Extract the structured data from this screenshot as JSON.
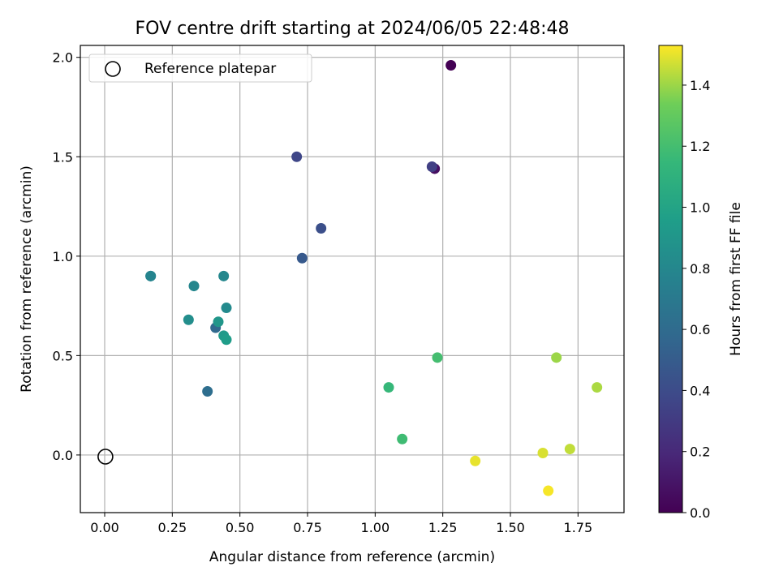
{
  "chart_data": {
    "type": "scatter",
    "title": "FOV centre drift starting at 2024/06/05 22:48:48",
    "xlabel": "Angular distance from reference (arcmin)",
    "ylabel": "Rotation from reference (arcmin)",
    "xlim": [
      -0.09,
      1.92
    ],
    "ylim": [
      -0.29,
      2.06
    ],
    "xticks": [
      0.0,
      0.25,
      0.5,
      0.75,
      1.0,
      1.25,
      1.5,
      1.75
    ],
    "xtick_labels": [
      "0.00",
      "0.25",
      "0.50",
      "0.75",
      "1.00",
      "1.25",
      "1.50",
      "1.75"
    ],
    "yticks": [
      0.0,
      0.5,
      1.0,
      1.5,
      2.0
    ],
    "ytick_labels": [
      "0.0",
      "0.5",
      "1.0",
      "1.5",
      "2.0"
    ],
    "grid": true,
    "legend": {
      "placement": "upper-left",
      "label": "Reference platepar"
    },
    "reference_point": {
      "x": 0.0,
      "y": 0.0
    },
    "colorbar": {
      "label": "Hours from first FF file",
      "min": 0.0,
      "max": 1.53,
      "ticks": [
        0.0,
        0.2,
        0.4,
        0.6,
        0.8,
        1.0,
        1.2,
        1.4
      ],
      "tick_labels": [
        "0.0",
        "0.2",
        "0.4",
        "0.6",
        "0.8",
        "1.0",
        "1.2",
        "1.4"
      ],
      "colormap": "viridis"
    },
    "points": [
      {
        "x": 1.28,
        "y": 1.96,
        "hours": 0.0
      },
      {
        "x": 1.22,
        "y": 1.44,
        "hours": 0.07
      },
      {
        "x": 1.21,
        "y": 1.45,
        "hours": 0.33
      },
      {
        "x": 0.71,
        "y": 1.5,
        "hours": 0.37
      },
      {
        "x": 0.8,
        "y": 1.14,
        "hours": 0.42
      },
      {
        "x": 0.73,
        "y": 0.99,
        "hours": 0.48
      },
      {
        "x": 0.41,
        "y": 0.64,
        "hours": 0.58
      },
      {
        "x": 0.38,
        "y": 0.32,
        "hours": 0.62
      },
      {
        "x": 0.17,
        "y": 0.9,
        "hours": 0.77
      },
      {
        "x": 0.17,
        "y": 0.9,
        "hours": 0.78
      },
      {
        "x": 0.33,
        "y": 0.85,
        "hours": 0.79
      },
      {
        "x": 0.44,
        "y": 0.9,
        "hours": 0.8
      },
      {
        "x": 0.45,
        "y": 0.74,
        "hours": 0.82
      },
      {
        "x": 0.31,
        "y": 0.68,
        "hours": 0.85
      },
      {
        "x": 0.42,
        "y": 0.67,
        "hours": 0.9
      },
      {
        "x": 0.44,
        "y": 0.6,
        "hours": 0.93
      },
      {
        "x": 0.45,
        "y": 0.58,
        "hours": 0.95
      },
      {
        "x": 1.05,
        "y": 0.34,
        "hours": 1.15
      },
      {
        "x": 1.1,
        "y": 0.08,
        "hours": 1.18
      },
      {
        "x": 1.23,
        "y": 0.49,
        "hours": 1.2
      },
      {
        "x": 1.67,
        "y": 0.49,
        "hours": 1.4
      },
      {
        "x": 1.82,
        "y": 0.34,
        "hours": 1.42
      },
      {
        "x": 1.72,
        "y": 0.03,
        "hours": 1.45
      },
      {
        "x": 1.62,
        "y": 0.01,
        "hours": 1.48
      },
      {
        "x": 1.37,
        "y": -0.03,
        "hours": 1.5
      },
      {
        "x": 1.64,
        "y": -0.18,
        "hours": 1.52
      }
    ]
  }
}
